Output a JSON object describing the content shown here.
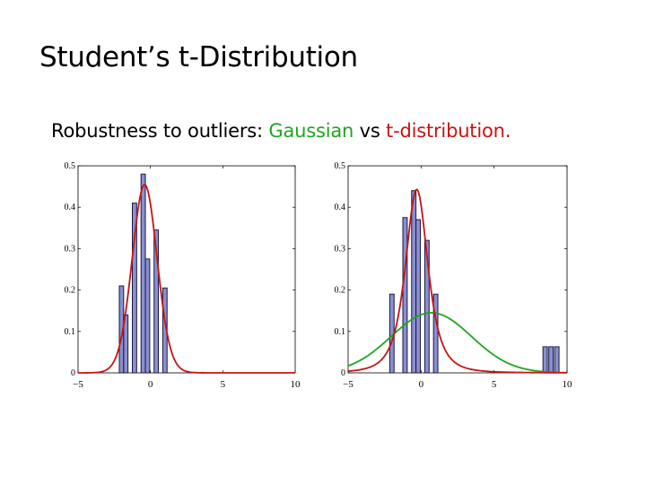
{
  "slide": {
    "title": "Student’s t-Distribution",
    "subtitle": {
      "prefix": "Robustness to outliers: ",
      "gaussian": "Gaussian",
      "middle": " vs ",
      "tdist": "t-distribution."
    }
  },
  "colors": {
    "gaussian": "#1fa51f",
    "tdist": "#c81414",
    "bars": "#8a8fd0",
    "bar_edge": "#1a1a40"
  },
  "chart_data": [
    {
      "type": "bar",
      "title": "",
      "xlabel": "",
      "ylabel": "",
      "xlim": [
        -5,
        10
      ],
      "ylim": [
        0,
        0.5
      ],
      "xticks": [
        -5,
        0,
        5,
        10
      ],
      "yticks": [
        0,
        0.1,
        0.2,
        0.3,
        0.4,
        0.5
      ],
      "ytick_labels": [
        "0",
        "0.1",
        "0.2",
        "0.3",
        "0.4",
        "0.5"
      ],
      "xtick_labels": [
        "−5",
        "0",
        "5",
        "10"
      ],
      "bin_width": 0.3,
      "bars": [
        {
          "x": -2.0,
          "value": 0.21
        },
        {
          "x": -1.7,
          "value": 0.14
        },
        {
          "x": -1.1,
          "value": 0.41
        },
        {
          "x": -0.5,
          "value": 0.48
        },
        {
          "x": -0.2,
          "value": 0.275
        },
        {
          "x": 0.4,
          "value": 0.345
        },
        {
          "x": 1.0,
          "value": 0.205
        }
      ],
      "curves": [
        {
          "name": "t-distribution",
          "color": "#c81414",
          "kind": "t",
          "mu": -0.4,
          "sigma": 0.87,
          "nu": 30
        }
      ]
    },
    {
      "type": "bar",
      "title": "",
      "xlabel": "",
      "ylabel": "",
      "xlim": [
        -5,
        10
      ],
      "ylim": [
        0,
        0.5
      ],
      "xticks": [
        -5,
        0,
        5,
        10
      ],
      "yticks": [
        0,
        0.1,
        0.2,
        0.3,
        0.4,
        0.5
      ],
      "ytick_labels": [
        "0",
        "0.1",
        "0.2",
        "0.3",
        "0.4",
        "0.5"
      ],
      "xtick_labels": [
        "−5",
        "0",
        "5",
        "10"
      ],
      "bin_width": 0.3,
      "bars": [
        {
          "x": -2.0,
          "value": 0.19
        },
        {
          "x": -1.1,
          "value": 0.375
        },
        {
          "x": -0.5,
          "value": 0.44
        },
        {
          "x": -0.2,
          "value": 0.37
        },
        {
          "x": 0.4,
          "value": 0.32
        },
        {
          "x": 1.0,
          "value": 0.19
        },
        {
          "x": 8.5,
          "value": 0.063
        },
        {
          "x": 8.9,
          "value": 0.063
        },
        {
          "x": 9.3,
          "value": 0.063
        }
      ],
      "curves": [
        {
          "name": "Gaussian",
          "color": "#1fa51f",
          "kind": "gauss",
          "mu": 0.7,
          "sigma": 2.75
        },
        {
          "name": "t-distribution",
          "color": "#c81414",
          "kind": "t",
          "mu": -0.3,
          "sigma": 0.82,
          "nu": 2.6
        }
      ]
    }
  ]
}
